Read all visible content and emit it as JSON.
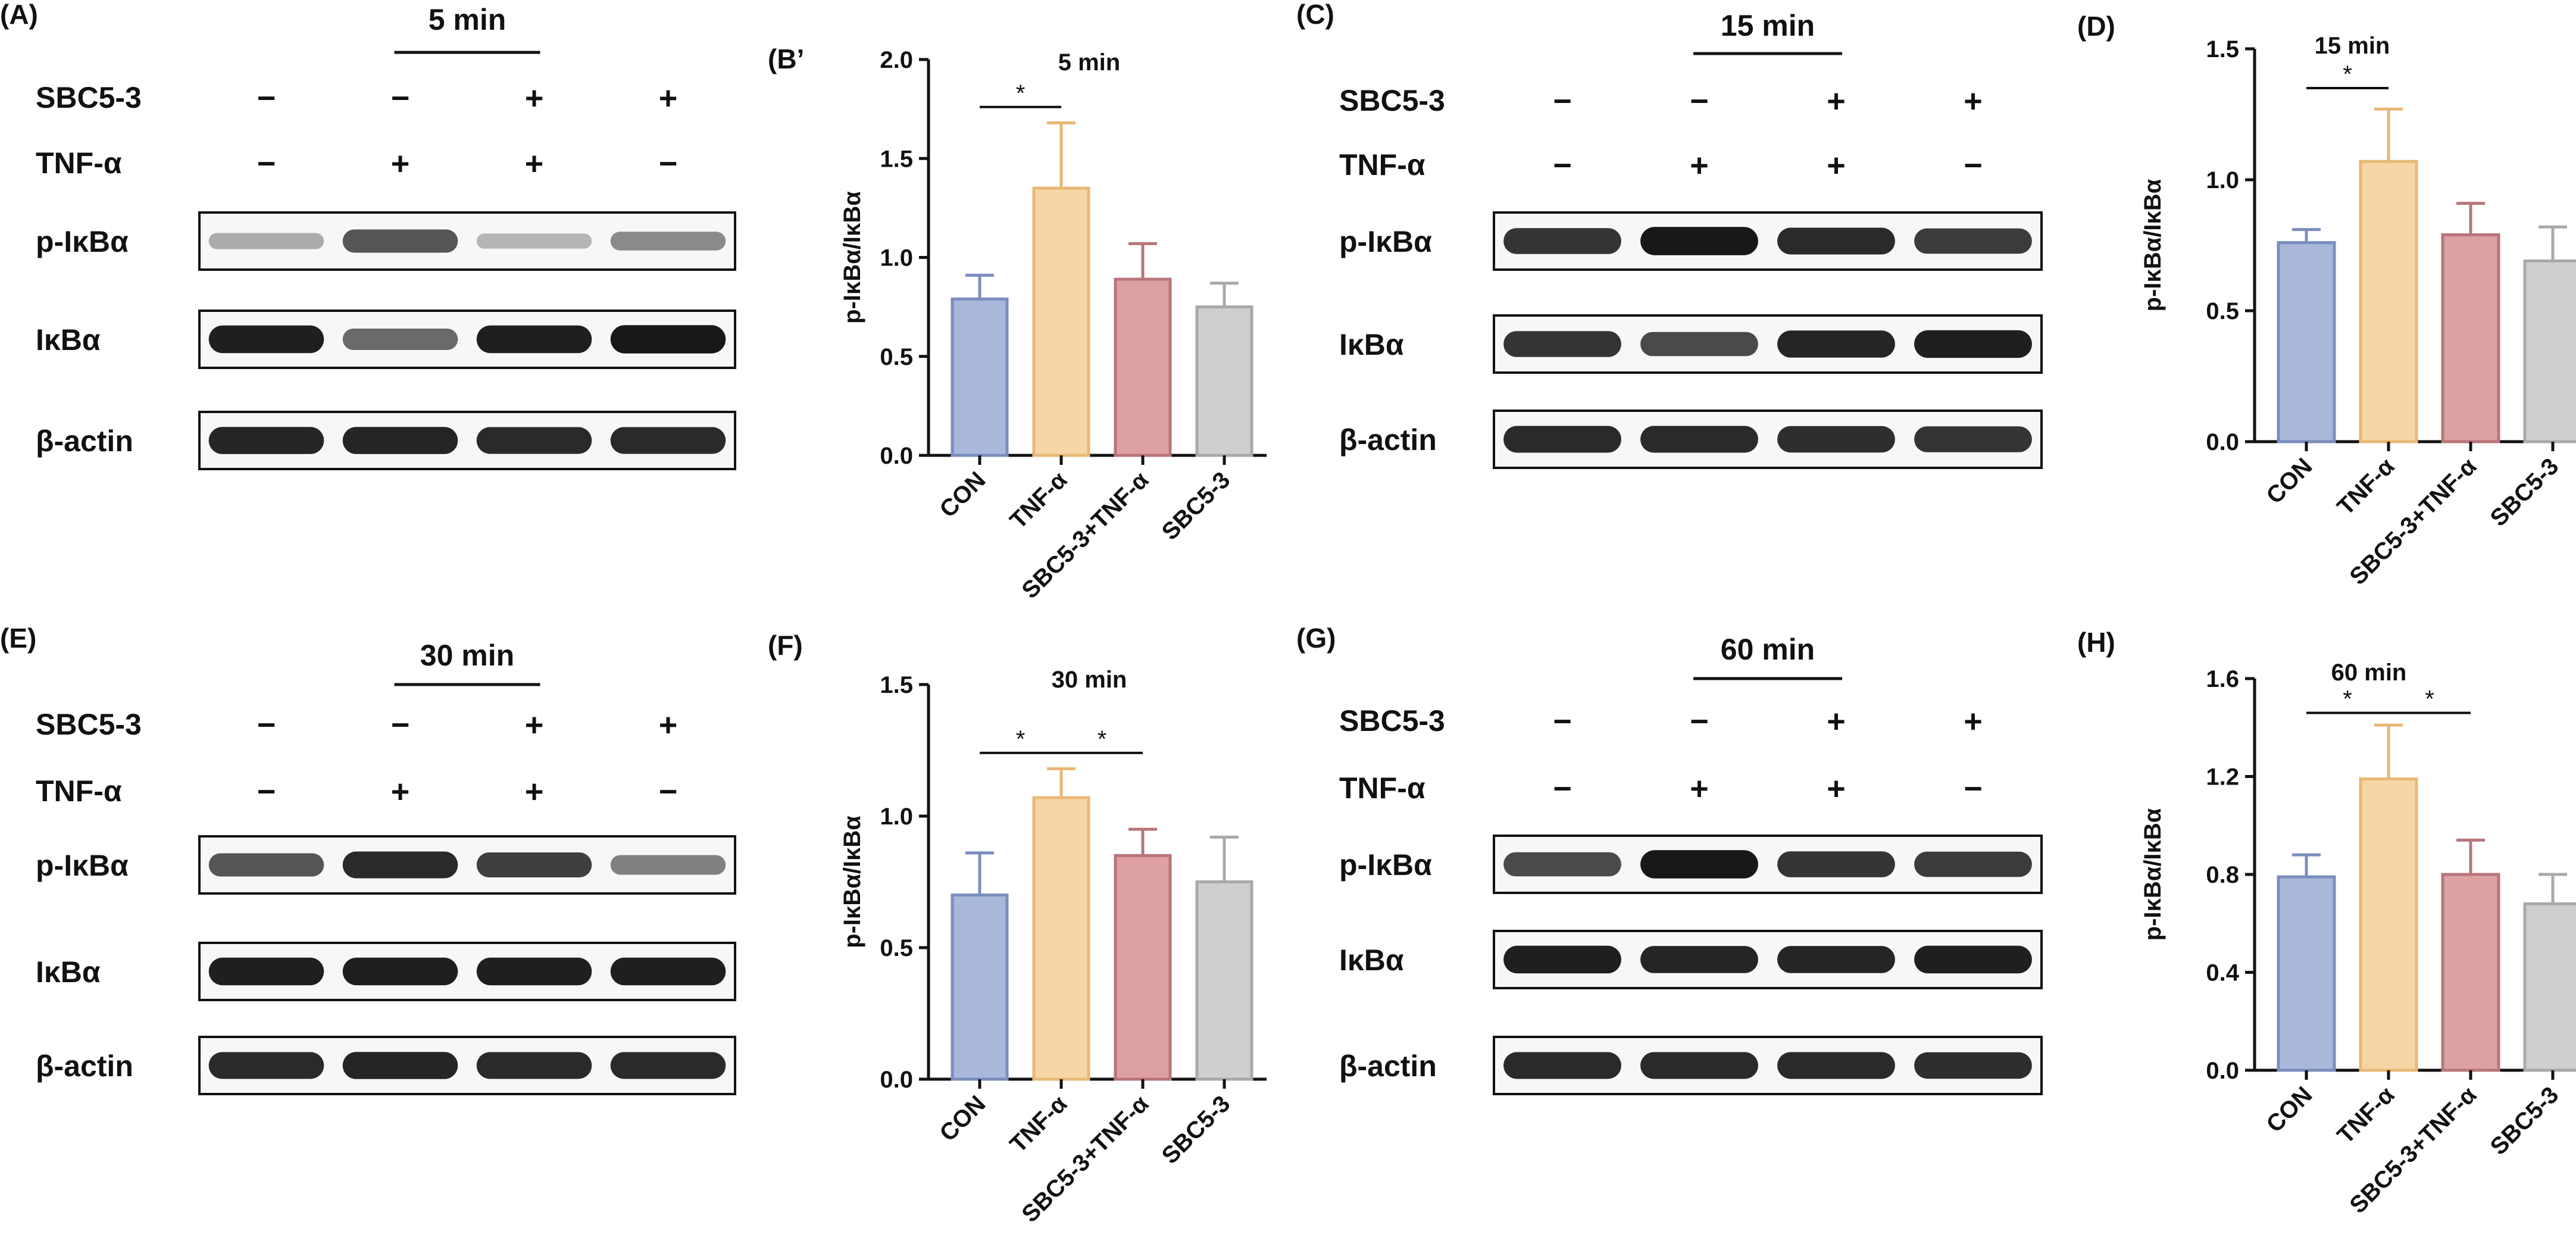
{
  "figure": {
    "colors": {
      "CON": "#a9b8da",
      "TNF": "#f7d6a6",
      "COMBO": "#dda1a4",
      "SBC": "#cfcfcf",
      "CON_edge": "#7a8dbd",
      "TNF_edge": "#e8b876",
      "COMBO_edge": "#b8757a",
      "SBC_edge": "#a9a9a9"
    },
    "blots": [
      {
        "panel_label": "(A)",
        "time": "5 min",
        "rows": [
          {
            "label": "SBC5-3",
            "signs": [
              "−",
              "−",
              "+",
              "+"
            ]
          },
          {
            "label": "TNF-α",
            "signs": [
              "−",
              "+",
              "+",
              "−"
            ]
          }
        ],
        "bands": [
          {
            "label": "p-IκBα",
            "intensity": [
              0.3,
              0.7,
              0.25,
              0.45
            ]
          },
          {
            "label": "IκBα",
            "intensity": [
              0.95,
              0.6,
              0.95,
              0.98
            ]
          },
          {
            "label": "β-actin",
            "intensity": [
              0.92,
              0.92,
              0.9,
              0.9
            ]
          }
        ]
      },
      {
        "panel_label": "(C)",
        "time": "15 min",
        "rows": [
          {
            "label": "SBC5-3",
            "signs": [
              "−",
              "−",
              "+",
              "+"
            ]
          },
          {
            "label": "TNF-α",
            "signs": [
              "−",
              "+",
              "+",
              "−"
            ]
          }
        ],
        "bands": [
          {
            "label": "p-IκBα",
            "intensity": [
              0.85,
              0.98,
              0.9,
              0.82
            ]
          },
          {
            "label": "IκBα",
            "intensity": [
              0.85,
              0.75,
              0.92,
              0.95
            ]
          },
          {
            "label": "β-actin",
            "intensity": [
              0.9,
              0.9,
              0.88,
              0.85
            ]
          }
        ]
      },
      {
        "panel_label": "(E)",
        "time": "30 min",
        "rows": [
          {
            "label": "SBC5-3",
            "signs": [
              "−",
              "−",
              "+",
              "+"
            ]
          },
          {
            "label": "TNF-α",
            "signs": [
              "−",
              "+",
              "+",
              "−"
            ]
          }
        ],
        "bands": [
          {
            "label": "p-IκBα",
            "intensity": [
              0.7,
              0.9,
              0.8,
              0.5
            ]
          },
          {
            "label": "IκBα",
            "intensity": [
              0.95,
              0.95,
              0.95,
              0.95
            ]
          },
          {
            "label": "β-actin",
            "intensity": [
              0.9,
              0.92,
              0.9,
              0.9
            ]
          }
        ]
      },
      {
        "panel_label": "(G)",
        "time": "60 min",
        "rows": [
          {
            "label": "SBC5-3",
            "signs": [
              "−",
              "−",
              "+",
              "+"
            ]
          },
          {
            "label": "TNF-α",
            "signs": [
              "−",
              "+",
              "+",
              "−"
            ]
          }
        ],
        "bands": [
          {
            "label": "p-IκBα",
            "intensity": [
              0.75,
              0.98,
              0.85,
              0.82
            ]
          },
          {
            "label": "IκBα",
            "intensity": [
              0.95,
              0.92,
              0.92,
              0.95
            ]
          },
          {
            "label": "β-actin",
            "intensity": [
              0.9,
              0.9,
              0.9,
              0.88
            ]
          }
        ]
      }
    ]
  },
  "chart_data": [
    {
      "panel_label": "(B’",
      "type": "bar",
      "title": "5 min",
      "ylabel": "p-IκBα/IκBα",
      "categories": [
        "CON",
        "TNF-α",
        "SBC5-3+TNF-α",
        "SBC5-3"
      ],
      "values": [
        0.79,
        1.35,
        0.89,
        0.75
      ],
      "errors": [
        0.12,
        0.33,
        0.18,
        0.12
      ],
      "ylim": [
        0,
        2.0
      ],
      "yticks": [
        "0.0",
        "0.5",
        "1.0",
        "1.5",
        "2.0"
      ],
      "significance": [
        {
          "from": 0,
          "to": 1,
          "y": 1.76,
          "label": "*"
        }
      ]
    },
    {
      "panel_label": "(D)",
      "type": "bar",
      "title": "15 min",
      "ylabel": "p-IκBα/IκBα",
      "categories": [
        "CON",
        "TNF-α",
        "SBC5-3+TNF-α",
        "SBC5-3"
      ],
      "values": [
        0.76,
        1.07,
        0.79,
        0.69
      ],
      "errors": [
        0.05,
        0.2,
        0.12,
        0.13
      ],
      "ylim": [
        0,
        1.5
      ],
      "yticks": [
        "0.0",
        "0.5",
        "1.0",
        "1.5"
      ],
      "significance": [
        {
          "from": 0,
          "to": 1,
          "y": 1.35,
          "label": "*"
        }
      ]
    },
    {
      "panel_label": "(F)",
      "type": "bar",
      "title": "30 min",
      "ylabel": "p-IκBα/IκBα",
      "categories": [
        "CON",
        "TNF-α",
        "SBC5-3+TNF-α",
        "SBC5-3"
      ],
      "values": [
        0.7,
        1.07,
        0.85,
        0.75
      ],
      "errors": [
        0.16,
        0.11,
        0.1,
        0.17
      ],
      "ylim": [
        0,
        1.5
      ],
      "yticks": [
        "0.0",
        "0.5",
        "1.0",
        "1.5"
      ],
      "significance": [
        {
          "from": 0,
          "to": 1,
          "y": 1.24,
          "label": "*"
        },
        {
          "from": 1,
          "to": 2,
          "y": 1.24,
          "label": "*"
        }
      ]
    },
    {
      "panel_label": "(H)",
      "type": "bar",
      "title": "60 min",
      "ylabel": "p-IκBα/IκBα",
      "categories": [
        "CON",
        "TNF-α",
        "SBC5-3+TNF-α",
        "SBC5-3"
      ],
      "values": [
        0.79,
        1.19,
        0.8,
        0.68
      ],
      "errors": [
        0.09,
        0.22,
        0.14,
        0.12
      ],
      "ylim": [
        0,
        1.6
      ],
      "yticks": [
        "0.0",
        "0.4",
        "0.8",
        "1.2",
        "1.6"
      ],
      "significance": [
        {
          "from": 0,
          "to": 1,
          "y": 1.46,
          "label": "*"
        },
        {
          "from": 1,
          "to": 2,
          "y": 1.46,
          "label": "*"
        }
      ]
    }
  ]
}
